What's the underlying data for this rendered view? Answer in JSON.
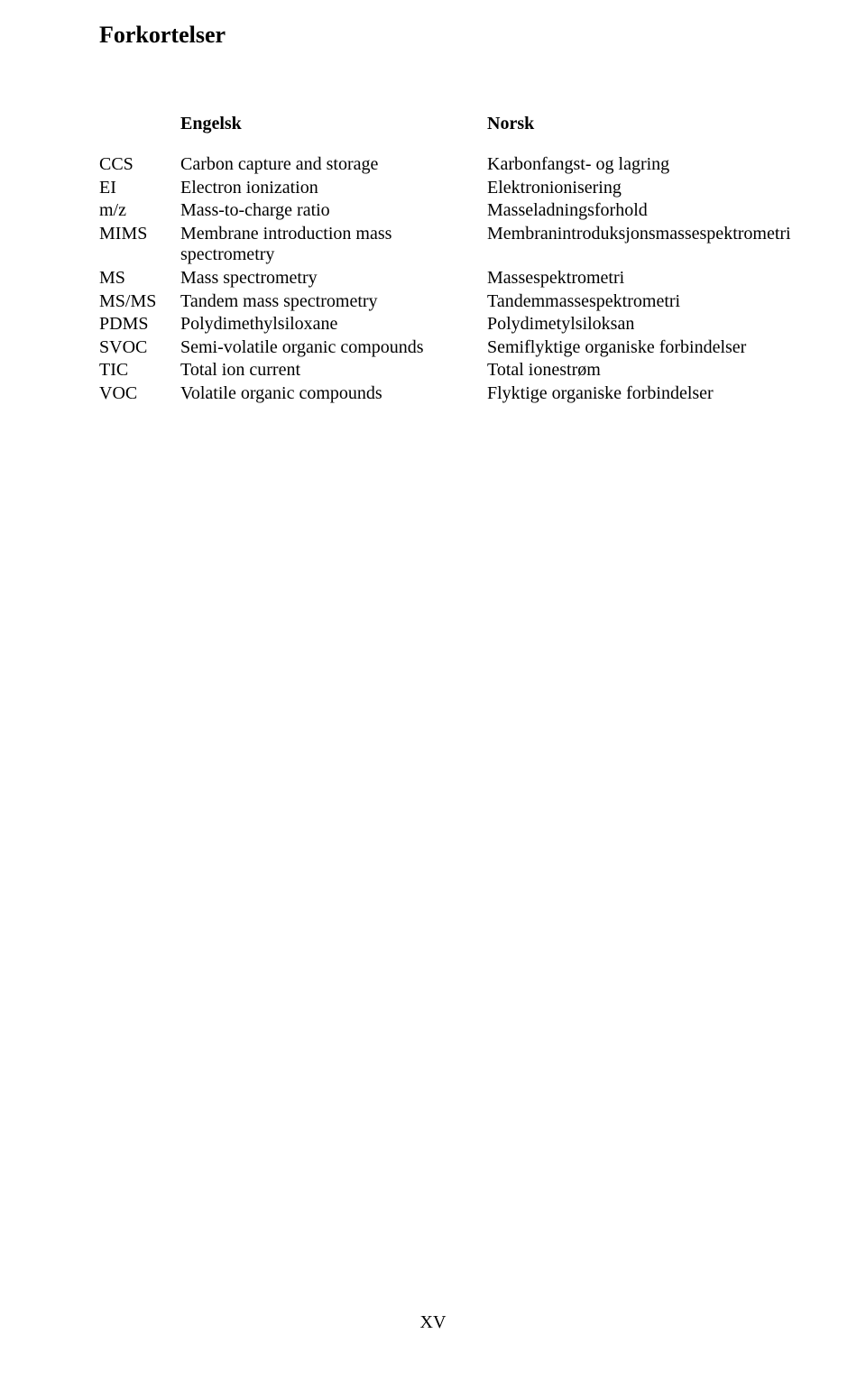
{
  "heading": "Forkortelser",
  "header": {
    "english": "Engelsk",
    "norwegian": "Norsk"
  },
  "rows": [
    {
      "abbr": "CCS",
      "en": "Carbon capture and storage",
      "no": "Karbonfangst- og lagring"
    },
    {
      "abbr": "EI",
      "en": "Electron ionization",
      "no": "Elektronionisering"
    },
    {
      "abbr": "m/z",
      "en": "Mass-to-charge ratio",
      "no": "Masseladningsforhold"
    },
    {
      "abbr": "MIMS",
      "en": "Membrane introduction mass spectrometry",
      "no": "Membranintroduksjonsmassespektrometri"
    },
    {
      "abbr": "MS",
      "en": "Mass spectrometry",
      "no": "Massespektrometri"
    },
    {
      "abbr": "MS/MS",
      "en": "Tandem mass spectrometry",
      "no": "Tandemmassespektrometri"
    },
    {
      "abbr": "PDMS",
      "en": "Polydimethylsiloxane",
      "no": "Polydimetylsiloksan"
    },
    {
      "abbr": "SVOC",
      "en": "Semi-volatile organic compounds",
      "no": "Semiflyktige organiske forbindelser"
    },
    {
      "abbr": "TIC",
      "en": "Total ion current",
      "no": "Total ionestrøm"
    },
    {
      "abbr": "VOC",
      "en": "Volatile organic compounds",
      "no": "Flyktige organiske forbindelser"
    }
  ],
  "page_number": "XV",
  "style": {
    "background_color": "#ffffff",
    "text_color": "#000000",
    "heading_fontsize": 26,
    "body_fontsize": 20,
    "font_family": "Times New Roman"
  }
}
